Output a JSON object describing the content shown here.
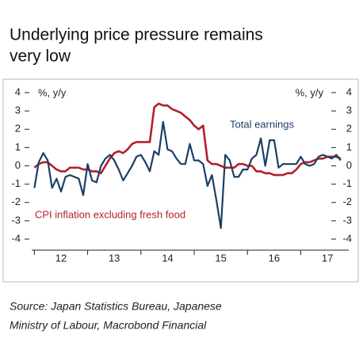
{
  "chart_data": {
    "type": "line",
    "title": [
      "Underlying price pressure remains",
      "very low"
    ],
    "y_label": "%, y/y",
    "y2_label": "%, y/y",
    "source": [
      "Source: Japan Statistics Bureau, Japanese",
      "Ministry of Labour, Macrobond Financial"
    ],
    "x": [
      12.0,
      12.083,
      12.167,
      12.25,
      12.333,
      12.417,
      12.5,
      12.583,
      12.667,
      12.75,
      12.833,
      12.917,
      13.0,
      13.083,
      13.167,
      13.25,
      13.333,
      13.417,
      13.5,
      13.583,
      13.667,
      13.75,
      13.833,
      13.917,
      14.0,
      14.083,
      14.167,
      14.25,
      14.333,
      14.417,
      14.5,
      14.583,
      14.667,
      14.75,
      14.833,
      14.917,
      15.0,
      15.083,
      15.167,
      15.25,
      15.333,
      15.417,
      15.5,
      15.583,
      15.667,
      15.75,
      15.833,
      15.917,
      16.0,
      16.083,
      16.167,
      16.25,
      16.333,
      16.417,
      16.5,
      16.583,
      16.667,
      16.75,
      16.833,
      16.917,
      17.0,
      17.083,
      17.167,
      17.25,
      17.333,
      17.417,
      17.5,
      17.583,
      17.667,
      17.75
    ],
    "series": [
      {
        "name": "CPI inflation excluding fresh food",
        "color": "#b22028",
        "axis": "y",
        "values": [
          -0.1,
          0.1,
          0.2,
          0.2,
          0.0,
          -0.2,
          -0.3,
          -0.3,
          -0.1,
          -0.1,
          -0.1,
          -0.2,
          -0.2,
          -0.3,
          -0.3,
          -0.4,
          0.0,
          0.4,
          0.7,
          0.8,
          0.7,
          0.9,
          1.2,
          1.3,
          1.3,
          1.3,
          1.3,
          3.2,
          3.4,
          3.3,
          3.3,
          3.1,
          3.0,
          2.9,
          2.7,
          2.5,
          2.2,
          2.0,
          2.2,
          0.3,
          0.1,
          0.1,
          0.0,
          -0.1,
          -0.1,
          -0.1,
          0.1,
          0.1,
          0.0,
          0.0,
          -0.3,
          -0.3,
          -0.4,
          -0.4,
          -0.5,
          -0.5,
          -0.5,
          -0.4,
          -0.4,
          -0.2,
          0.1,
          0.2,
          0.2,
          0.3,
          0.4,
          0.4,
          0.5,
          0.5,
          0.5,
          0.4
        ]
      },
      {
        "name": "Total earnings",
        "color": "#1b3f66",
        "axis": "y",
        "values": [
          -1.2,
          0.2,
          0.7,
          0.3,
          -1.2,
          -0.7,
          -1.4,
          -0.6,
          -0.5,
          -0.6,
          -0.7,
          -1.6,
          0.1,
          -0.8,
          -0.9,
          0.0,
          0.4,
          0.6,
          0.3,
          -0.2,
          -0.8,
          -0.4,
          0.0,
          0.5,
          0.6,
          0.2,
          -0.3,
          0.8,
          0.6,
          2.4,
          0.9,
          0.8,
          0.4,
          0.1,
          0.1,
          1.2,
          0.3,
          0.3,
          0.1,
          -1.1,
          -0.5,
          -1.9,
          -3.4,
          0.6,
          0.3,
          -0.6,
          -0.6,
          -0.2,
          -0.2,
          0.4,
          0.6,
          1.5,
          0.0,
          1.4,
          1.4,
          -0.1,
          0.1,
          0.1,
          0.1,
          0.1,
          0.5,
          0.1,
          0.0,
          0.1,
          0.5,
          0.6,
          0.5,
          0.4,
          0.6,
          0.3
        ]
      }
    ],
    "xlim": [
      11.95,
      17.9
    ],
    "xticks": [
      {
        "value": 12.5,
        "label": "12"
      },
      {
        "value": 13.5,
        "label": "13"
      },
      {
        "value": 14.5,
        "label": "14"
      },
      {
        "value": 15.5,
        "label": "15"
      },
      {
        "value": 16.5,
        "label": "16"
      },
      {
        "value": 17.5,
        "label": "17"
      }
    ],
    "ylim": [
      -4,
      4
    ],
    "yticks": [
      -4,
      -3,
      -2,
      -1,
      0,
      1,
      2,
      3,
      4
    ],
    "y2lim": [
      -4,
      4
    ],
    "y2ticks": [
      -4,
      -3,
      -2,
      -1,
      0,
      1,
      2,
      3,
      4
    ],
    "grid": false
  }
}
